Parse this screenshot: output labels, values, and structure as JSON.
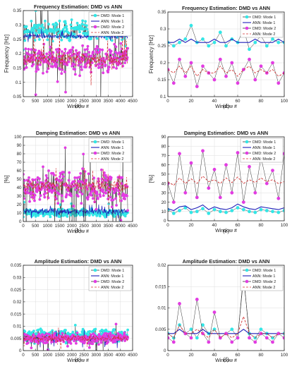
{
  "chart_data": [
    {
      "id": "a",
      "type": "scatter",
      "caption": "(a)",
      "title": "Frequency Estimation: DMD vs ANN",
      "xlabel": "Window #",
      "ylabel": "Frequency [Hz]",
      "xlim": [
        0,
        4500
      ],
      "ylim": [
        0.05,
        0.35
      ],
      "xticks": [
        0,
        500,
        1000,
        1500,
        2000,
        2500,
        3000,
        3500,
        4000,
        4500
      ],
      "yticks": [
        0.05,
        0.1,
        0.15,
        0.2,
        0.25,
        0.3,
        0.35
      ],
      "grid": true,
      "legend_position": "top-right",
      "n_points": 4300,
      "series": [
        {
          "name": "DMD: Mode 1",
          "style": "marker-line",
          "color": "#33e6e6",
          "center": 0.28,
          "spread": 0.05
        },
        {
          "name": "ANN: Mode 1",
          "style": "line",
          "color": "#1f1fb8",
          "center": 0.26,
          "spread": 0.01
        },
        {
          "name": "DMD: Mode 2",
          "style": "marker-line",
          "color": "#e23ce2",
          "center": 0.18,
          "spread": 0.07
        },
        {
          "name": "ANN: Mode 2",
          "style": "dashed",
          "color": "#d13030",
          "center": 0.18,
          "spread": 0.04
        }
      ]
    },
    {
      "id": "d",
      "type": "line",
      "caption": "(d)",
      "title": "Frequency Estimation: DMD vs ANN",
      "xlabel": "Window #",
      "ylabel": "Frequency [Hz]",
      "xlim": [
        0,
        100
      ],
      "ylim": [
        0.1,
        0.35
      ],
      "xticks": [
        0,
        20,
        40,
        60,
        80,
        100
      ],
      "yticks": [
        0.1,
        0.15,
        0.2,
        0.25,
        0.3,
        0.35
      ],
      "grid": true,
      "legend_position": "top-right",
      "x": [
        0,
        5,
        10,
        15,
        20,
        25,
        30,
        35,
        40,
        45,
        50,
        55,
        60,
        65,
        70,
        75,
        80,
        85,
        90,
        95,
        100
      ],
      "series": [
        {
          "name": "DMD: Mode 1",
          "style": "marker-line",
          "color": "#33e6e6",
          "values": [
            0.26,
            0.25,
            0.26,
            0.27,
            0.31,
            0.26,
            0.27,
            0.25,
            0.26,
            0.29,
            0.25,
            0.27,
            0.26,
            0.3,
            0.24,
            0.26,
            0.28,
            0.25,
            0.27,
            0.26,
            0.26
          ]
        },
        {
          "name": "ANN: Mode 1",
          "style": "line",
          "color": "#1f1fb8",
          "values": [
            0.26,
            0.26,
            0.27,
            0.26,
            0.27,
            0.26,
            0.26,
            0.26,
            0.27,
            0.26,
            0.26,
            0.27,
            0.26,
            0.26,
            0.26,
            0.27,
            0.26,
            0.26,
            0.26,
            0.27,
            0.26
          ]
        },
        {
          "name": "DMD: Mode 2",
          "style": "marker-line",
          "color": "#e23ce2",
          "values": [
            0.18,
            0.14,
            0.21,
            0.16,
            0.2,
            0.13,
            0.19,
            0.17,
            0.15,
            0.21,
            0.16,
            0.2,
            0.14,
            0.18,
            0.21,
            0.15,
            0.19,
            0.17,
            0.2,
            0.14,
            0.17
          ]
        },
        {
          "name": "ANN: Mode 2",
          "style": "dashed",
          "color": "#d13030",
          "values": [
            0.18,
            0.17,
            0.19,
            0.17,
            0.19,
            0.16,
            0.18,
            0.17,
            0.17,
            0.19,
            0.17,
            0.18,
            0.16,
            0.18,
            0.19,
            0.17,
            0.18,
            0.17,
            0.18,
            0.16,
            0.17
          ]
        }
      ]
    },
    {
      "id": "b",
      "type": "scatter",
      "caption": "(b)",
      "title": "Damping Estimation: DMD vs ANN",
      "xlabel": "Window #",
      "ylabel": "[%]",
      "xlim": [
        0,
        4500
      ],
      "ylim": [
        0,
        100
      ],
      "xticks": [
        0,
        500,
        1000,
        1500,
        2000,
        2500,
        3000,
        3500,
        4000,
        4500
      ],
      "yticks": [
        0,
        10,
        20,
        30,
        40,
        50,
        60,
        70,
        80,
        90,
        100
      ],
      "grid": true,
      "legend_position": "top-right",
      "n_points": 4300,
      "series": [
        {
          "name": "DMD: Mode 1",
          "style": "marker-line",
          "color": "#33e6e6",
          "center": 10,
          "spread": 6
        },
        {
          "name": "ANN: Mode 1",
          "style": "line",
          "color": "#1f1fb8",
          "center": 12,
          "spread": 5
        },
        {
          "name": "DMD: Mode 2",
          "style": "marker-line",
          "color": "#e23ce2",
          "center": 40,
          "spread": 30
        },
        {
          "name": "ANN: Mode 2",
          "style": "dashed",
          "color": "#d13030",
          "center": 42,
          "spread": 10
        }
      ]
    },
    {
      "id": "e",
      "type": "line",
      "caption": "(e)",
      "title": "Damping Estimation: DMD vs ANN",
      "xlabel": "Window #",
      "ylabel": "[%]",
      "xlim": [
        0,
        100
      ],
      "ylim": [
        0,
        90
      ],
      "xticks": [
        0,
        20,
        40,
        60,
        80,
        100
      ],
      "yticks": [
        0,
        10,
        20,
        30,
        40,
        50,
        60,
        70,
        80,
        90
      ],
      "grid": true,
      "legend_position": "top-right",
      "x": [
        0,
        5,
        10,
        15,
        20,
        25,
        30,
        35,
        40,
        45,
        50,
        55,
        60,
        65,
        70,
        75,
        80,
        85,
        90,
        95,
        100
      ],
      "series": [
        {
          "name": "DMD: Mode 1",
          "style": "marker-line",
          "color": "#33e6e6",
          "values": [
            12,
            8,
            11,
            14,
            9,
            10,
            13,
            8,
            12,
            10,
            9,
            11,
            14,
            12,
            10,
            9,
            12,
            11,
            10,
            9,
            11
          ]
        },
        {
          "name": "ANN: Mode 1",
          "style": "line",
          "color": "#1f1fb8",
          "values": [
            13,
            11,
            15,
            16,
            12,
            14,
            17,
            12,
            15,
            13,
            12,
            14,
            18,
            15,
            13,
            12,
            15,
            14,
            13,
            12,
            14
          ]
        },
        {
          "name": "DMD: Mode 2",
          "style": "marker-line",
          "color": "#e23ce2",
          "values": [
            40,
            20,
            72,
            30,
            62,
            25,
            75,
            35,
            55,
            25,
            60,
            30,
            73,
            20,
            58,
            30,
            68,
            40,
            54,
            24,
            72
          ]
        },
        {
          "name": "ANN: Mode 2",
          "style": "dashed",
          "color": "#d13030",
          "values": [
            42,
            38,
            46,
            40,
            45,
            40,
            48,
            42,
            44,
            40,
            46,
            41,
            47,
            40,
            44,
            41,
            46,
            42,
            44,
            40,
            42
          ]
        }
      ]
    },
    {
      "id": "c",
      "type": "scatter",
      "caption": "(c)",
      "title": "Amplitude Estimation: DMD vs ANN",
      "xlabel": "Window #",
      "ylabel": "",
      "xlim": [
        0,
        4500
      ],
      "ylim": [
        0,
        0.035
      ],
      "xticks": [
        0,
        500,
        1000,
        1500,
        2000,
        2500,
        3000,
        3500,
        4000,
        4500
      ],
      "yticks": [
        0,
        0.005,
        0.01,
        0.015,
        0.02,
        0.025,
        0.03,
        0.035
      ],
      "grid": true,
      "legend_position": "top-right",
      "n_points": 4300,
      "series": [
        {
          "name": "DMD: Mode 1",
          "style": "marker-line",
          "color": "#33e6e6",
          "center": 0.006,
          "spread": 0.004
        },
        {
          "name": "ANN: Mode 1",
          "style": "line",
          "color": "#1f1fb8",
          "center": 0.005,
          "spread": 0.002
        },
        {
          "name": "DMD: Mode 2",
          "style": "marker-line",
          "color": "#e23ce2",
          "center": 0.005,
          "spread": 0.003
        },
        {
          "name": "ANN: Mode 2",
          "style": "dashed",
          "color": "#d13030",
          "center": 0.005,
          "spread": 0.002
        }
      ]
    },
    {
      "id": "f",
      "type": "line",
      "caption": "(f)",
      "title": "Amplitude Estimation: DMD vs ANN",
      "xlabel": "Window #",
      "ylabel": "",
      "xlim": [
        0,
        100
      ],
      "ylim": [
        0,
        0.02
      ],
      "xticks": [
        0,
        20,
        40,
        60,
        80,
        100
      ],
      "yticks": [
        0,
        0.005,
        0.01,
        0.015,
        0.02
      ],
      "grid": true,
      "legend_position": "top-right",
      "x": [
        0,
        5,
        10,
        15,
        20,
        25,
        30,
        35,
        40,
        45,
        50,
        55,
        60,
        65,
        70,
        75,
        80,
        85,
        90,
        95,
        100
      ],
      "series": [
        {
          "name": "DMD: Mode 1",
          "style": "marker-line",
          "color": "#33e6e6",
          "values": [
            0.004,
            0.003,
            0.006,
            0.004,
            0.005,
            0.003,
            0.006,
            0.004,
            0.005,
            0.003,
            0.004,
            0.005,
            0.003,
            0.017,
            0.004,
            0.003,
            0.005,
            0.004,
            0.003,
            0.004,
            0.004
          ]
        },
        {
          "name": "ANN: Mode 1",
          "style": "line",
          "color": "#1f1fb8",
          "values": [
            0.004,
            0.004,
            0.005,
            0.004,
            0.004,
            0.004,
            0.005,
            0.004,
            0.004,
            0.004,
            0.004,
            0.004,
            0.004,
            0.005,
            0.004,
            0.004,
            0.004,
            0.004,
            0.004,
            0.004,
            0.004
          ]
        },
        {
          "name": "DMD: Mode 2",
          "style": "marker-line",
          "color": "#e23ce2",
          "values": [
            0.003,
            0.002,
            0.011,
            0.004,
            0.003,
            0.012,
            0.004,
            0.002,
            0.009,
            0.003,
            0.004,
            0.002,
            0.003,
            0.018,
            0.003,
            0.002,
            0.004,
            0.003,
            0.002,
            0.004,
            0.003
          ]
        },
        {
          "name": "ANN: Mode 2",
          "style": "dashed",
          "color": "#d13030",
          "values": [
            0.004,
            0.003,
            0.006,
            0.004,
            0.004,
            0.005,
            0.004,
            0.003,
            0.005,
            0.003,
            0.004,
            0.003,
            0.004,
            0.008,
            0.004,
            0.003,
            0.004,
            0.004,
            0.003,
            0.004,
            0.004
          ]
        }
      ]
    }
  ]
}
